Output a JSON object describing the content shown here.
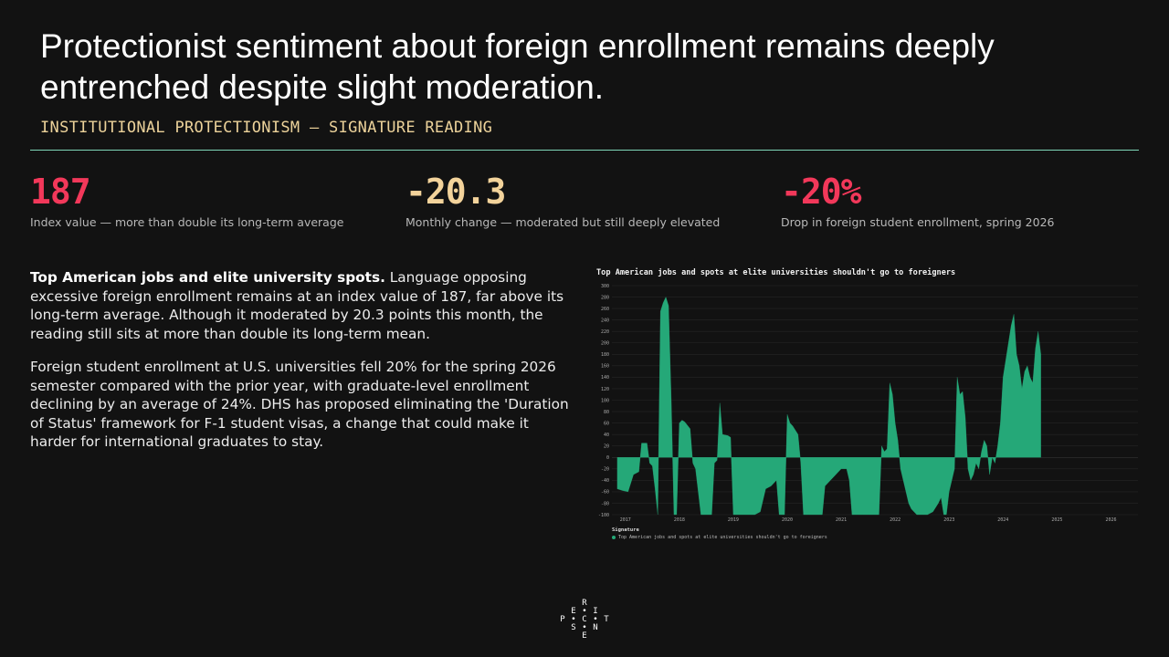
{
  "header": {
    "title": "Protectionist sentiment about foreign enrollment remains deeply entrenched despite slight moderation.",
    "subtitle": "INSTITUTIONAL PROTECTIONISM — SIGNATURE READING"
  },
  "stats": [
    {
      "value": "187",
      "caption": "Index value — more than double its long-term average",
      "color": "#f2385a"
    },
    {
      "value": "-20.3",
      "caption": "Monthly change — moderated but still deeply elevated",
      "color": "#f3d39b"
    },
    {
      "value": "-20%",
      "caption": "Drop in foreign student enrollment, spring 2026",
      "color": "#f2385a"
    }
  ],
  "body": {
    "lead_bold": "Top American jobs and elite university spots.",
    "lead_rest": " Language opposing excessive foreign enrollment remains at an index value of 187, far above its long-term average. Although it moderated by 20.3 points this month, the reading still sits at more than double its long-term mean.",
    "paragraph2": "Foreign student enrollment at U.S. universities fell 20% for the spring 2026 semester compared with the prior year, with graduate-level enrollment declining by an average of 24%. DHS has proposed eliminating the 'Duration of Status' framework for F-1 student visas, a change that could make it harder for international graduates to stay."
  },
  "chart_data": {
    "type": "area",
    "title": "Top American jobs and spots at elite universities shouldn't go to foreigners",
    "x_ticks": [
      "2017",
      "2018",
      "2019",
      "2020",
      "2021",
      "2022",
      "2023",
      "2024",
      "2025",
      "2026"
    ],
    "y_ticks": [
      300,
      280,
      260,
      240,
      220,
      200,
      180,
      160,
      140,
      120,
      100,
      80,
      60,
      40,
      20,
      0,
      -20,
      -40,
      -60,
      -80,
      -100
    ],
    "ylim": [
      -100,
      300
    ],
    "xlim": [
      2016.75,
      2026.5
    ],
    "grid": true,
    "legend": {
      "title": "Signature",
      "entries": [
        "Top American jobs and spots at elite universities shouldn't go to foreigners"
      ],
      "position": "bottom-left"
    },
    "series": [
      {
        "color": "#25a878",
        "points": [
          [
            2016.85,
            -55
          ],
          [
            2016.95,
            -58
          ],
          [
            2017.05,
            -60
          ],
          [
            2017.15,
            -30
          ],
          [
            2017.25,
            -25
          ],
          [
            2017.3,
            25
          ],
          [
            2017.4,
            25
          ],
          [
            2017.45,
            -10
          ],
          [
            2017.5,
            -15
          ],
          [
            2017.55,
            -55
          ],
          [
            2017.6,
            -100
          ],
          [
            2017.65,
            255
          ],
          [
            2017.7,
            270
          ],
          [
            2017.75,
            280
          ],
          [
            2017.8,
            265
          ],
          [
            2017.85,
            100
          ],
          [
            2017.9,
            -100
          ],
          [
            2017.95,
            -100
          ],
          [
            2018.0,
            60
          ],
          [
            2018.05,
            65
          ],
          [
            2018.1,
            62
          ],
          [
            2018.2,
            50
          ],
          [
            2018.25,
            -10
          ],
          [
            2018.3,
            -20
          ],
          [
            2018.4,
            -100
          ],
          [
            2018.5,
            -100
          ],
          [
            2018.6,
            -100
          ],
          [
            2018.65,
            -10
          ],
          [
            2018.7,
            -5
          ],
          [
            2018.75,
            95
          ],
          [
            2018.8,
            40
          ],
          [
            2018.9,
            38
          ],
          [
            2018.95,
            35
          ],
          [
            2019.0,
            -100
          ],
          [
            2019.1,
            -100
          ],
          [
            2019.2,
            -100
          ],
          [
            2019.3,
            -100
          ],
          [
            2019.4,
            -100
          ],
          [
            2019.5,
            -95
          ],
          [
            2019.6,
            -55
          ],
          [
            2019.7,
            -50
          ],
          [
            2019.75,
            -45
          ],
          [
            2019.8,
            -40
          ],
          [
            2019.85,
            -100
          ],
          [
            2019.95,
            -100
          ],
          [
            2020.0,
            75
          ],
          [
            2020.05,
            60
          ],
          [
            2020.1,
            55
          ],
          [
            2020.2,
            40
          ],
          [
            2020.25,
            -10
          ],
          [
            2020.3,
            -100
          ],
          [
            2020.4,
            -100
          ],
          [
            2020.5,
            -100
          ],
          [
            2020.6,
            -100
          ],
          [
            2020.65,
            -100
          ],
          [
            2020.7,
            -50
          ],
          [
            2020.8,
            -40
          ],
          [
            2020.9,
            -30
          ],
          [
            2021.0,
            -20
          ],
          [
            2021.1,
            -20
          ],
          [
            2021.15,
            -40
          ],
          [
            2021.2,
            -100
          ],
          [
            2021.3,
            -100
          ],
          [
            2021.4,
            -100
          ],
          [
            2021.5,
            -100
          ],
          [
            2021.6,
            -100
          ],
          [
            2021.7,
            -100
          ],
          [
            2021.75,
            20
          ],
          [
            2021.8,
            10
          ],
          [
            2021.85,
            15
          ],
          [
            2021.9,
            130
          ],
          [
            2021.95,
            110
          ],
          [
            2022.0,
            60
          ],
          [
            2022.05,
            30
          ],
          [
            2022.1,
            -20
          ],
          [
            2022.15,
            -40
          ],
          [
            2022.2,
            -60
          ],
          [
            2022.25,
            -80
          ],
          [
            2022.3,
            -90
          ],
          [
            2022.4,
            -100
          ],
          [
            2022.5,
            -100
          ],
          [
            2022.6,
            -100
          ],
          [
            2022.7,
            -95
          ],
          [
            2022.8,
            -80
          ],
          [
            2022.85,
            -70
          ],
          [
            2022.9,
            -100
          ],
          [
            2022.95,
            -100
          ],
          [
            2023.0,
            -60
          ],
          [
            2023.05,
            -40
          ],
          [
            2023.1,
            -20
          ],
          [
            2023.15,
            140
          ],
          [
            2023.2,
            110
          ],
          [
            2023.25,
            115
          ],
          [
            2023.3,
            70
          ],
          [
            2023.35,
            -20
          ],
          [
            2023.4,
            -40
          ],
          [
            2023.45,
            -30
          ],
          [
            2023.5,
            -10
          ],
          [
            2023.55,
            -20
          ],
          [
            2023.6,
            10
          ],
          [
            2023.65,
            30
          ],
          [
            2023.7,
            20
          ],
          [
            2023.75,
            -30
          ],
          [
            2023.8,
            0
          ],
          [
            2023.85,
            -10
          ],
          [
            2023.9,
            20
          ],
          [
            2023.95,
            60
          ],
          [
            2024.0,
            140
          ],
          [
            2024.05,
            170
          ],
          [
            2024.1,
            200
          ],
          [
            2024.15,
            230
          ],
          [
            2024.2,
            250
          ],
          [
            2024.25,
            180
          ],
          [
            2024.3,
            160
          ],
          [
            2024.35,
            120
          ],
          [
            2024.4,
            150
          ],
          [
            2024.45,
            160
          ],
          [
            2024.5,
            140
          ],
          [
            2024.55,
            130
          ],
          [
            2024.6,
            190
          ],
          [
            2024.65,
            220
          ],
          [
            2024.7,
            180
          ]
        ]
      }
    ]
  },
  "logo": {
    "letters": [
      "R",
      "E",
      "•",
      "I",
      "P",
      "•",
      "C",
      "•",
      "T",
      "S",
      "•",
      "N",
      "E"
    ]
  }
}
